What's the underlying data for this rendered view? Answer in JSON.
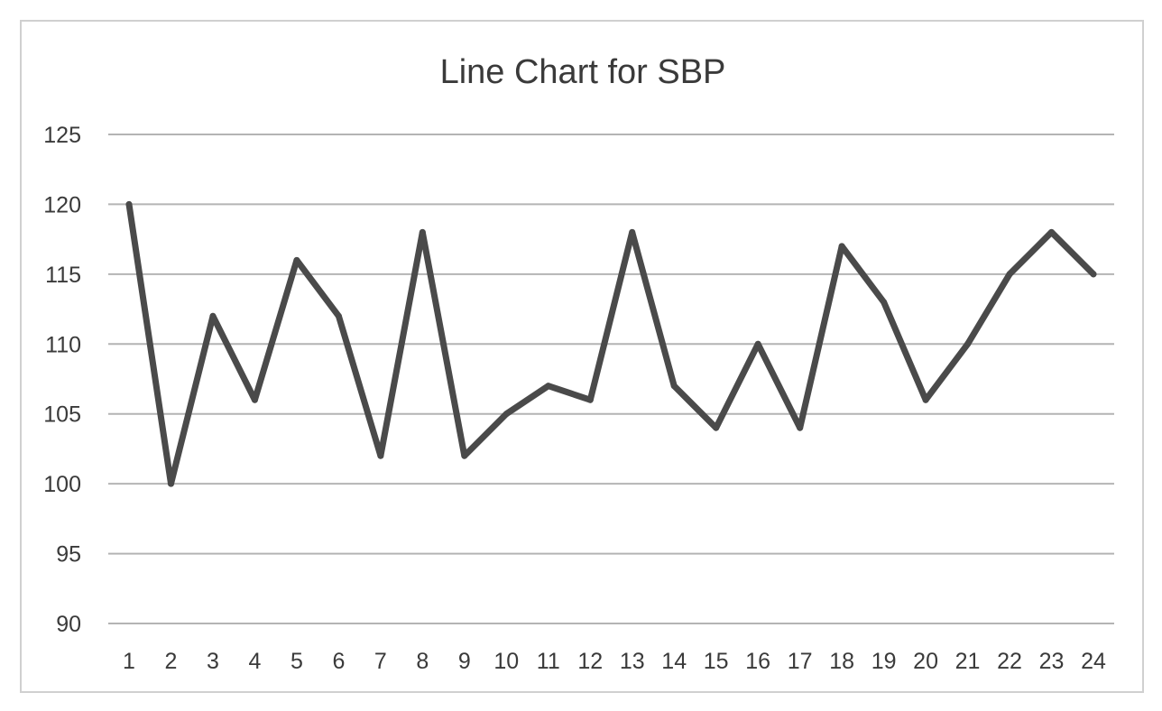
{
  "chart_data": {
    "type": "line",
    "title": "Line Chart for SBP",
    "xlabel": "",
    "ylabel": "",
    "categories": [
      "1",
      "2",
      "3",
      "4",
      "5",
      "6",
      "7",
      "8",
      "9",
      "10",
      "11",
      "12",
      "13",
      "14",
      "15",
      "16",
      "17",
      "18",
      "19",
      "20",
      "21",
      "22",
      "23",
      "24"
    ],
    "series": [
      {
        "values": [
          120,
          100,
          112,
          106,
          116,
          112,
          102,
          118,
          102,
          105,
          107,
          106,
          118,
          107,
          104,
          110,
          104,
          117,
          113,
          106,
          110,
          115,
          118,
          115
        ]
      }
    ],
    "ylim": [
      90,
      125
    ],
    "yticks": [
      90,
      95,
      100,
      105,
      110,
      115,
      120,
      125
    ],
    "grid": true,
    "legend": "none",
    "colors": {
      "line": "#4a4a4a",
      "grid": "#b4b4b4",
      "text": "#3a3a3a",
      "frame": "#d0d0d0"
    }
  }
}
